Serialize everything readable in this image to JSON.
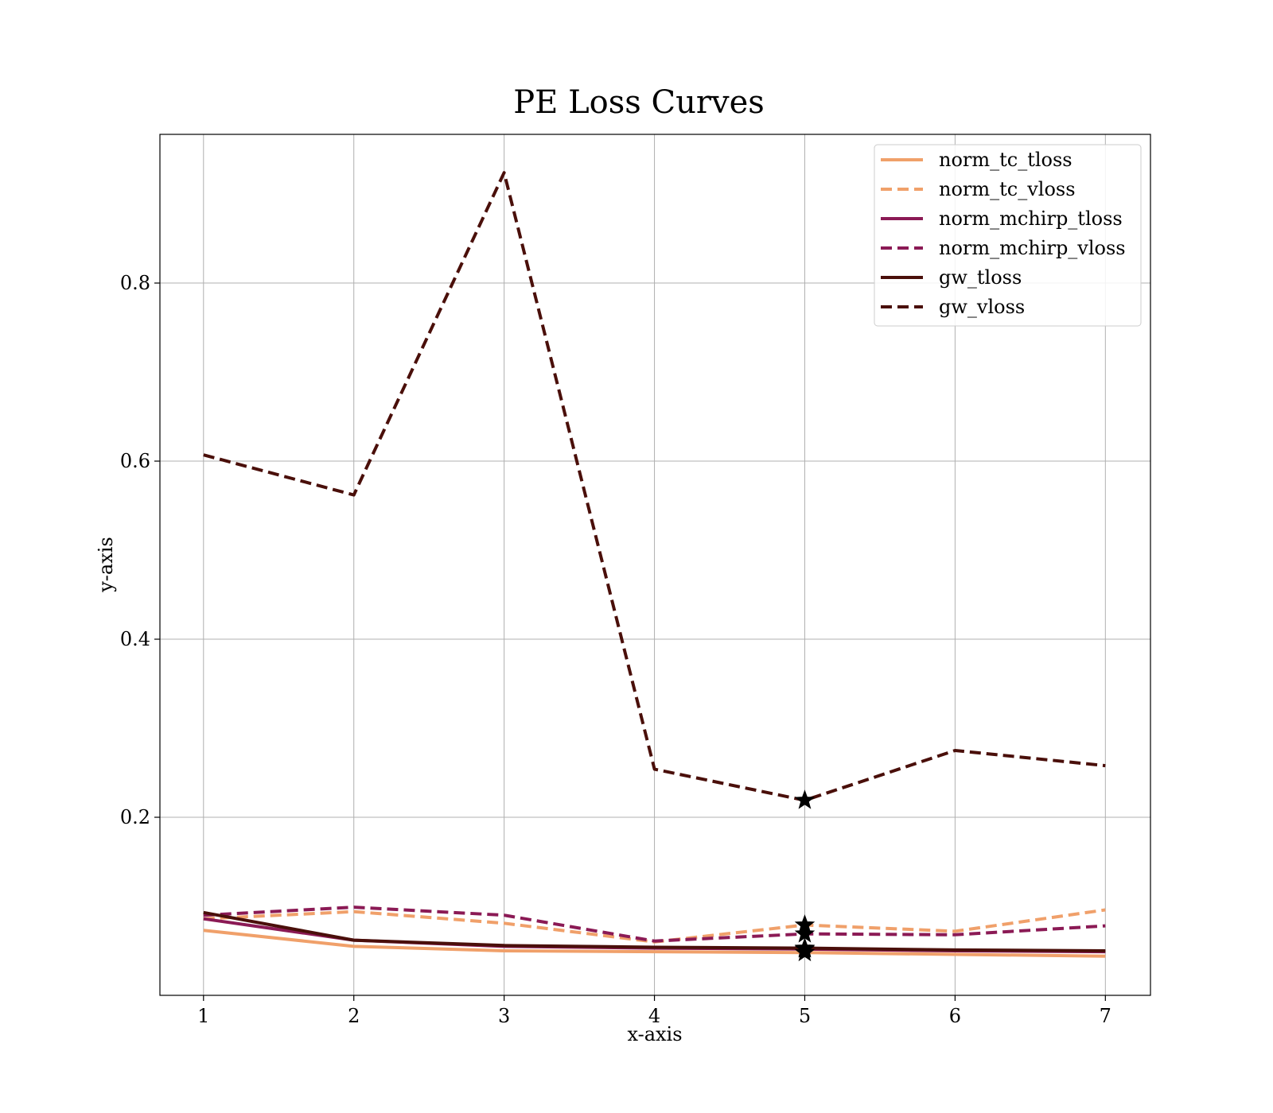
{
  "chart_data": {
    "type": "line",
    "title": "PE Loss Curves",
    "xlabel": "x-axis",
    "ylabel": "y-axis",
    "xlim": [
      0.71,
      7.3
    ],
    "ylim": [
      0.0,
      0.967
    ],
    "xticks": [
      1,
      2,
      3,
      4,
      5,
      6,
      7
    ],
    "yticks": [
      0.2,
      0.4,
      0.6,
      0.8
    ],
    "xtick_labels": [
      "1",
      "2",
      "3",
      "4",
      "5",
      "6",
      "7"
    ],
    "ytick_labels": [
      "0.2",
      "0.4",
      "0.6",
      "0.8"
    ],
    "grid": true,
    "legend_position": "top-right",
    "x": [
      1,
      2,
      3,
      4,
      5,
      6,
      7
    ],
    "series": [
      {
        "name": "norm_tc_tloss",
        "color": "#f0a06a",
        "dash": "solid",
        "values": [
          0.073,
          0.055,
          0.05,
          0.049,
          0.048,
          0.046,
          0.044
        ]
      },
      {
        "name": "norm_tc_vloss",
        "color": "#f0a06a",
        "dash": "dashed",
        "values": [
          0.086,
          0.094,
          0.081,
          0.06,
          0.079,
          0.072,
          0.096
        ]
      },
      {
        "name": "norm_mchirp_tloss",
        "color": "#8b1a55",
        "dash": "solid",
        "values": [
          0.086,
          0.062,
          0.055,
          0.053,
          0.052,
          0.05,
          0.049
        ]
      },
      {
        "name": "norm_mchirp_vloss",
        "color": "#8b1a55",
        "dash": "dashed",
        "values": [
          0.09,
          0.099,
          0.09,
          0.061,
          0.069,
          0.068,
          0.078
        ]
      },
      {
        "name": "gw_tloss",
        "color": "#4a0f0a",
        "dash": "solid",
        "values": [
          0.093,
          0.062,
          0.056,
          0.054,
          0.053,
          0.051,
          0.05
        ]
      },
      {
        "name": "gw_vloss",
        "color": "#4a0f0a",
        "dash": "dashed",
        "values": [
          0.607,
          0.562,
          0.924,
          0.254,
          0.219,
          0.275,
          0.258
        ]
      }
    ],
    "markers": [
      {
        "series": "gw_vloss",
        "x": 5,
        "y": 0.219,
        "symbol": "star"
      },
      {
        "series": "norm_tc_vloss",
        "x": 5,
        "y": 0.079,
        "symbol": "star"
      },
      {
        "series": "norm_mchirp_vloss",
        "x": 5,
        "y": 0.069,
        "symbol": "star"
      },
      {
        "series": "norm_mchirp_tloss",
        "x": 5,
        "y": 0.052,
        "symbol": "star"
      },
      {
        "series": "gw_tloss",
        "x": 5,
        "y": 0.053,
        "symbol": "star"
      },
      {
        "series": "norm_tc_tloss",
        "x": 5,
        "y": 0.048,
        "symbol": "star"
      }
    ]
  }
}
